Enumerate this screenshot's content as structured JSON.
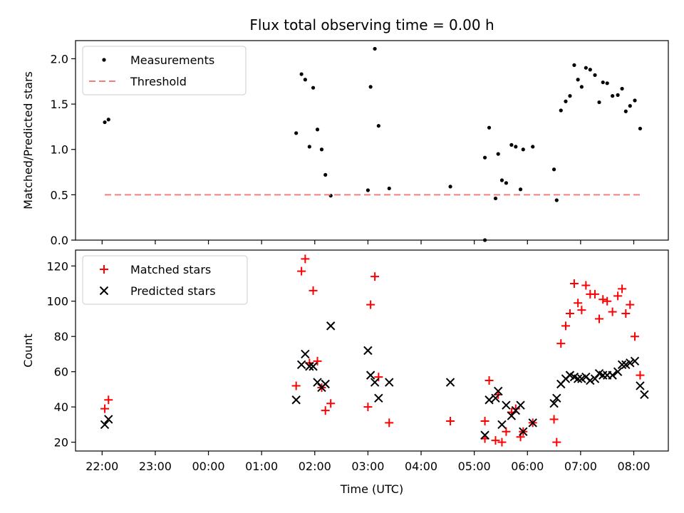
{
  "chart_data": {
    "title": "Flux total observing time = 0.00 h",
    "xlabel": "Time (UTC)",
    "x_tick_labels": [
      "22:00",
      "23:00",
      "00:00",
      "01:00",
      "02:00",
      "03:00",
      "04:00",
      "05:00",
      "06:00",
      "07:00",
      "08:00"
    ],
    "x_unit": "hours since 22:00 UTC",
    "x_range": [
      -0.5,
      10.65
    ],
    "panels": [
      {
        "type": "scatter",
        "ylabel": "Matched/Predicted stars",
        "ylim": [
          0,
          2.2
        ],
        "yticks": [
          0.0,
          0.5,
          1.0,
          1.5,
          2.0
        ],
        "y_tick_labels": [
          "0.0",
          "0.5",
          "1.0",
          "1.5",
          "2.0"
        ],
        "legend": {
          "position": "top-left",
          "entries": [
            "Measurements",
            "Threshold"
          ]
        },
        "series": [
          {
            "name": "Measurements",
            "marker": "dot",
            "color": "#000000",
            "points": [
              [
                0.05,
                1.3
              ],
              [
                0.12,
                1.33
              ],
              [
                3.65,
                1.18
              ],
              [
                3.75,
                1.83
              ],
              [
                3.82,
                1.77
              ],
              [
                3.9,
                1.03
              ],
              [
                3.97,
                1.68
              ],
              [
                4.05,
                1.22
              ],
              [
                4.13,
                1.0
              ],
              [
                4.2,
                0.72
              ],
              [
                4.3,
                0.49
              ],
              [
                5.0,
                0.55
              ],
              [
                5.05,
                1.69
              ],
              [
                5.13,
                2.11
              ],
              [
                5.2,
                1.26
              ],
              [
                5.4,
                0.57
              ],
              [
                6.55,
                0.59
              ],
              [
                7.2,
                0.0
              ],
              [
                7.2,
                0.91
              ],
              [
                7.28,
                1.24
              ],
              [
                7.4,
                0.46
              ],
              [
                7.45,
                0.95
              ],
              [
                7.52,
                0.66
              ],
              [
                7.6,
                0.63
              ],
              [
                7.7,
                1.05
              ],
              [
                7.78,
                1.03
              ],
              [
                7.87,
                0.56
              ],
              [
                7.92,
                1.0
              ],
              [
                8.1,
                1.03
              ],
              [
                8.5,
                0.78
              ],
              [
                8.55,
                0.44
              ],
              [
                8.63,
                1.43
              ],
              [
                8.72,
                1.53
              ],
              [
                8.8,
                1.59
              ],
              [
                8.88,
                1.93
              ],
              [
                8.95,
                1.77
              ],
              [
                9.02,
                1.69
              ],
              [
                9.1,
                1.9
              ],
              [
                9.18,
                1.88
              ],
              [
                9.27,
                1.82
              ],
              [
                9.35,
                1.52
              ],
              [
                9.42,
                1.74
              ],
              [
                9.5,
                1.73
              ],
              [
                9.6,
                1.59
              ],
              [
                9.7,
                1.6
              ],
              [
                9.78,
                1.67
              ],
              [
                9.85,
                1.42
              ],
              [
                9.93,
                1.48
              ],
              [
                10.02,
                1.54
              ],
              [
                10.12,
                1.23
              ]
            ]
          },
          {
            "name": "Threshold",
            "marker": "dashed-line",
            "color": "#f08080",
            "points": [
              [
                0.05,
                0.5
              ],
              [
                10.12,
                0.5
              ]
            ]
          }
        ]
      },
      {
        "type": "scatter",
        "ylabel": "Count",
        "ylim": [
          15,
          129
        ],
        "yticks": [
          20,
          40,
          60,
          80,
          100,
          120
        ],
        "y_tick_labels": [
          "20",
          "40",
          "60",
          "80",
          "100",
          "120"
        ],
        "legend": {
          "position": "top-left",
          "entries": [
            "Matched stars",
            "Predicted stars"
          ]
        },
        "series": [
          {
            "name": "Matched stars",
            "marker": "plus",
            "color": "#ff0000",
            "points": [
              [
                0.05,
                39
              ],
              [
                0.12,
                44
              ],
              [
                3.65,
                52
              ],
              [
                3.75,
                117
              ],
              [
                3.82,
                124
              ],
              [
                3.9,
                65
              ],
              [
                3.97,
                106
              ],
              [
                4.05,
                66
              ],
              [
                4.13,
                51
              ],
              [
                4.2,
                38
              ],
              [
                4.3,
                42
              ],
              [
                5.0,
                40
              ],
              [
                5.05,
                98
              ],
              [
                5.13,
                114
              ],
              [
                5.2,
                57
              ],
              [
                5.4,
                31
              ],
              [
                6.55,
                32
              ],
              [
                7.2,
                32
              ],
              [
                7.2,
                22
              ],
              [
                7.28,
                55
              ],
              [
                7.4,
                21
              ],
              [
                7.45,
                47
              ],
              [
                7.52,
                20
              ],
              [
                7.6,
                26
              ],
              [
                7.7,
                37
              ],
              [
                7.78,
                39
              ],
              [
                7.87,
                23
              ],
              [
                7.92,
                26
              ],
              [
                8.1,
                31
              ],
              [
                8.5,
                33
              ],
              [
                8.55,
                20
              ],
              [
                8.63,
                76
              ],
              [
                8.72,
                86
              ],
              [
                8.8,
                93
              ],
              [
                8.88,
                110
              ],
              [
                8.95,
                99
              ],
              [
                9.02,
                95
              ],
              [
                9.1,
                109
              ],
              [
                9.18,
                104
              ],
              [
                9.27,
                104
              ],
              [
                9.35,
                90
              ],
              [
                9.42,
                101
              ],
              [
                9.5,
                100
              ],
              [
                9.6,
                94
              ],
              [
                9.7,
                103
              ],
              [
                9.78,
                107
              ],
              [
                9.85,
                93
              ],
              [
                9.93,
                98
              ],
              [
                10.02,
                80
              ],
              [
                10.12,
                58
              ]
            ]
          },
          {
            "name": "Predicted stars",
            "marker": "x",
            "color": "#000000",
            "points": [
              [
                0.05,
                30
              ],
              [
                0.12,
                33
              ],
              [
                3.65,
                44
              ],
              [
                3.75,
                64
              ],
              [
                3.82,
                70
              ],
              [
                3.9,
                63
              ],
              [
                3.97,
                63
              ],
              [
                4.05,
                54
              ],
              [
                4.13,
                51
              ],
              [
                4.2,
                53
              ],
              [
                4.3,
                86
              ],
              [
                5.0,
                72
              ],
              [
                5.05,
                58
              ],
              [
                5.13,
                54
              ],
              [
                5.2,
                45
              ],
              [
                5.4,
                54
              ],
              [
                6.55,
                54
              ],
              [
                7.2,
                24
              ],
              [
                7.28,
                44
              ],
              [
                7.4,
                45
              ],
              [
                7.45,
                49
              ],
              [
                7.52,
                30
              ],
              [
                7.6,
                41
              ],
              [
                7.7,
                35
              ],
              [
                7.78,
                38
              ],
              [
                7.87,
                41
              ],
              [
                7.92,
                26
              ],
              [
                8.1,
                31
              ],
              [
                8.5,
                42
              ],
              [
                8.55,
                45
              ],
              [
                8.63,
                53
              ],
              [
                8.72,
                56
              ],
              [
                8.8,
                58
              ],
              [
                8.88,
                57
              ],
              [
                8.95,
                56
              ],
              [
                9.02,
                56
              ],
              [
                9.1,
                57
              ],
              [
                9.18,
                55
              ],
              [
                9.27,
                56
              ],
              [
                9.35,
                59
              ],
              [
                9.42,
                58
              ],
              [
                9.5,
                58
              ],
              [
                9.6,
                58
              ],
              [
                9.7,
                60
              ],
              [
                9.78,
                64
              ],
              [
                9.85,
                64
              ],
              [
                9.93,
                65
              ],
              [
                10.02,
                66
              ],
              [
                10.12,
                52
              ],
              [
                10.2,
                47
              ]
            ]
          }
        ]
      }
    ]
  }
}
